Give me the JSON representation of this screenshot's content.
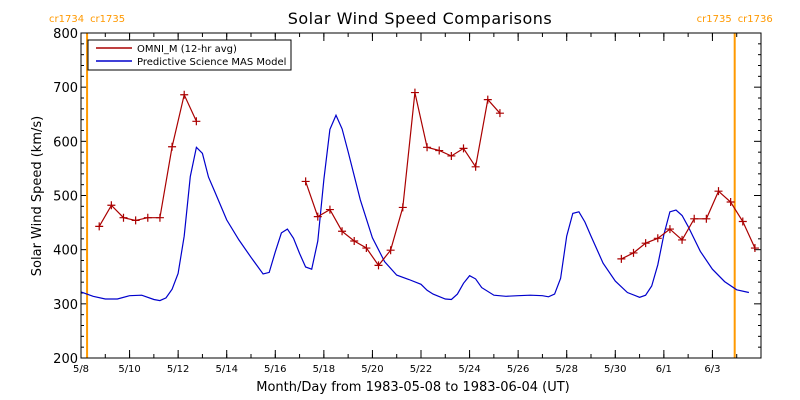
{
  "chart_data": {
    "type": "line",
    "title": "Solar Wind Speed Comparisons",
    "xlabel": "Month/Day from 1983-05-08 to 1983-06-04 (UT)",
    "ylabel": "Solar Wind Speed (km/s)",
    "xlim": [
      "1983-05-08",
      "1983-06-04"
    ],
    "ylim": [
      200,
      800
    ],
    "yticks": [
      200,
      300,
      400,
      500,
      600,
      700,
      800
    ],
    "xticks": [
      {
        "x": "1983-05-08",
        "label": "5/8"
      },
      {
        "x": "1983-05-10",
        "label": "5/10"
      },
      {
        "x": "1983-05-12",
        "label": "5/12"
      },
      {
        "x": "1983-05-14",
        "label": "5/14"
      },
      {
        "x": "1983-05-16",
        "label": "5/16"
      },
      {
        "x": "1983-05-18",
        "label": "5/18"
      },
      {
        "x": "1983-05-20",
        "label": "5/20"
      },
      {
        "x": "1983-05-22",
        "label": "5/22"
      },
      {
        "x": "1983-05-24",
        "label": "5/24"
      },
      {
        "x": "1983-05-26",
        "label": "5/26"
      },
      {
        "x": "1983-05-28",
        "label": "5/28"
      },
      {
        "x": "1983-05-30",
        "label": "5/30"
      },
      {
        "x": "1983-06-01",
        "label": "6/1"
      },
      {
        "x": "1983-06-03",
        "label": "6/3"
      }
    ],
    "legend_position": "top-left",
    "carrington_markers": [
      {
        "x": "1983-05-08T06:00",
        "left_label": "cr1734",
        "right_label": "cr1735",
        "color": "#ff9900"
      },
      {
        "x": "1983-06-03T22:00",
        "left_label": "cr1735",
        "right_label": "cr1736",
        "color": "#ff9900"
      }
    ],
    "series": [
      {
        "name": "OMNI_M (12-hr avg)",
        "color": "#aa0000",
        "marker": "plus",
        "segments": [
          [
            [
              "1983-05-08T18:00",
              443
            ],
            [
              "1983-05-09T06:00",
              482
            ],
            [
              "1983-05-09T18:00",
              459
            ],
            [
              "1983-05-10T06:00",
              454
            ],
            [
              "1983-05-10T18:00",
              459
            ],
            [
              "1983-05-11T06:00",
              459
            ],
            [
              "1983-05-11T18:00",
              590
            ],
            [
              "1983-05-12T06:00",
              686
            ],
            [
              "1983-05-12T18:00",
              637
            ]
          ],
          [
            [
              "1983-05-17T06:00",
              526
            ],
            [
              "1983-05-17T18:00",
              461
            ],
            [
              "1983-05-18T06:00",
              474
            ],
            [
              "1983-05-18T18:00",
              434
            ],
            [
              "1983-05-19T06:00",
              416
            ],
            [
              "1983-05-19T18:00",
              403
            ],
            [
              "1983-05-20T06:00",
              371
            ],
            [
              "1983-05-20T18:00",
              399
            ],
            [
              "1983-05-21T06:00",
              478
            ],
            [
              "1983-05-21T18:00",
              690
            ],
            [
              "1983-05-22T06:00",
              589
            ],
            [
              "1983-05-22T18:00",
              583
            ],
            [
              "1983-05-23T06:00",
              573
            ],
            [
              "1983-05-23T18:00",
              587
            ],
            [
              "1983-05-24T06:00",
              553
            ],
            [
              "1983-05-24T18:00",
              677
            ],
            [
              "1983-05-25T06:00",
              652
            ]
          ],
          [
            [
              "1983-05-30T06:00",
              383
            ],
            [
              "1983-05-30T18:00",
              394
            ],
            [
              "1983-05-31T06:00",
              412
            ],
            [
              "1983-05-31T18:00",
              421
            ],
            [
              "1983-06-01T06:00",
              438
            ],
            [
              "1983-06-01T18:00",
              418
            ],
            [
              "1983-06-02T06:00",
              457
            ],
            [
              "1983-06-02T18:00",
              457
            ],
            [
              "1983-06-03T06:00",
              508
            ],
            [
              "1983-06-03T18:00",
              488
            ],
            [
              "1983-06-04T06:00",
              452
            ],
            [
              "1983-06-04T18:00",
              403
            ]
          ]
        ]
      },
      {
        "name": "Predictive Science MAS Model",
        "color": "#0000cc",
        "points": [
          [
            "1983-05-08T00:00",
            322
          ],
          [
            "1983-05-08T12:00",
            314
          ],
          [
            "1983-05-09T00:00",
            309
          ],
          [
            "1983-05-09T12:00",
            309
          ],
          [
            "1983-05-10T00:00",
            315
          ],
          [
            "1983-05-10T12:00",
            316
          ],
          [
            "1983-05-11T00:00",
            308
          ],
          [
            "1983-05-11T06:00",
            306
          ],
          [
            "1983-05-11T12:00",
            311
          ],
          [
            "1983-05-11T18:00",
            327
          ],
          [
            "1983-05-12T00:00",
            356
          ],
          [
            "1983-05-12T06:00",
            425
          ],
          [
            "1983-05-12T12:00",
            535
          ],
          [
            "1983-05-12T18:00",
            589
          ],
          [
            "1983-05-13T00:00",
            578
          ],
          [
            "1983-05-13T06:00",
            534
          ],
          [
            "1983-05-13T12:00",
            508
          ],
          [
            "1983-05-14T00:00",
            455
          ],
          [
            "1983-05-14T12:00",
            418
          ],
          [
            "1983-05-15T00:00",
            386
          ],
          [
            "1983-05-15T12:00",
            355
          ],
          [
            "1983-05-15T18:00",
            358
          ],
          [
            "1983-05-16T00:00",
            396
          ],
          [
            "1983-05-16T06:00",
            431
          ],
          [
            "1983-05-16T12:00",
            438
          ],
          [
            "1983-05-16T18:00",
            421
          ],
          [
            "1983-05-17T00:00",
            393
          ],
          [
            "1983-05-17T06:00",
            368
          ],
          [
            "1983-05-17T12:00",
            364
          ],
          [
            "1983-05-17T18:00",
            416
          ],
          [
            "1983-05-18T00:00",
            530
          ],
          [
            "1983-05-18T06:00",
            622
          ],
          [
            "1983-05-18T12:00",
            648
          ],
          [
            "1983-05-18T18:00",
            623
          ],
          [
            "1983-05-19T00:00",
            581
          ],
          [
            "1983-05-19T12:00",
            492
          ],
          [
            "1983-05-20T00:00",
            422
          ],
          [
            "1983-05-20T12:00",
            378
          ],
          [
            "1983-05-21T00:00",
            353
          ],
          [
            "1983-05-21T12:00",
            345
          ],
          [
            "1983-05-22T00:00",
            336
          ],
          [
            "1983-05-22T06:00",
            325
          ],
          [
            "1983-05-22T12:00",
            318
          ],
          [
            "1983-05-23T00:00",
            309
          ],
          [
            "1983-05-23T06:00",
            308
          ],
          [
            "1983-05-23T12:00",
            318
          ],
          [
            "1983-05-23T18:00",
            338
          ],
          [
            "1983-05-24T00:00",
            352
          ],
          [
            "1983-05-24T06:00",
            346
          ],
          [
            "1983-05-24T12:00",
            330
          ],
          [
            "1983-05-25T00:00",
            316
          ],
          [
            "1983-05-25T12:00",
            314
          ],
          [
            "1983-05-26T00:00",
            315
          ],
          [
            "1983-05-26T12:00",
            316
          ],
          [
            "1983-05-27T00:00",
            315
          ],
          [
            "1983-05-27T06:00",
            313
          ],
          [
            "1983-05-27T12:00",
            318
          ],
          [
            "1983-05-27T18:00",
            347
          ],
          [
            "1983-05-28T00:00",
            425
          ],
          [
            "1983-05-28T06:00",
            467
          ],
          [
            "1983-05-28T12:00",
            470
          ],
          [
            "1983-05-28T18:00",
            451
          ],
          [
            "1983-05-29T00:00",
            425
          ],
          [
            "1983-05-29T12:00",
            375
          ],
          [
            "1983-05-30T00:00",
            342
          ],
          [
            "1983-05-30T12:00",
            321
          ],
          [
            "1983-05-31T00:00",
            312
          ],
          [
            "1983-05-31T06:00",
            316
          ],
          [
            "1983-05-31T12:00",
            333
          ],
          [
            "1983-05-31T18:00",
            372
          ],
          [
            "1983-06-01T00:00",
            428
          ],
          [
            "1983-06-01T06:00",
            470
          ],
          [
            "1983-06-01T12:00",
            473
          ],
          [
            "1983-06-01T18:00",
            463
          ],
          [
            "1983-06-02T00:00",
            443
          ],
          [
            "1983-06-02T12:00",
            397
          ],
          [
            "1983-06-03T00:00",
            364
          ],
          [
            "1983-06-03T12:00",
            341
          ],
          [
            "1983-06-04T00:00",
            326
          ],
          [
            "1983-06-04T12:00",
            321
          ]
        ]
      }
    ]
  }
}
